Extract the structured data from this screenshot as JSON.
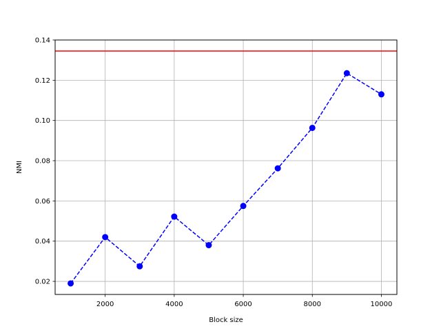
{
  "chart_data": {
    "type": "line",
    "title": "",
    "xlabel": "Block size",
    "ylabel": "NMI",
    "xlim": [
      550,
      10450
    ],
    "ylim": [
      0.0135,
      0.14
    ],
    "xticks": [
      2000,
      4000,
      6000,
      8000,
      10000
    ],
    "xtick_labels": [
      "2000",
      "4000",
      "6000",
      "8000",
      "10000"
    ],
    "yticks": [
      0.02,
      0.04,
      0.06,
      0.08,
      0.1,
      0.12,
      0.14
    ],
    "ytick_labels": [
      "0.02",
      "0.04",
      "0.06",
      "0.08",
      "0.10",
      "0.12",
      "0.14"
    ],
    "grid": true,
    "series": [
      {
        "style": "dashed line with circle markers",
        "color": "#0000ff",
        "x": [
          1000,
          2000,
          3000,
          4000,
          5000,
          6000,
          7000,
          8000,
          9000,
          10000
        ],
        "y": [
          0.019,
          0.042,
          0.0275,
          0.0522,
          0.038,
          0.0575,
          0.0762,
          0.0963,
          0.1235,
          0.113
        ]
      }
    ],
    "reference_lines": [
      {
        "orientation": "horizontal",
        "y": 0.1345,
        "color": "#ff0000"
      }
    ]
  }
}
